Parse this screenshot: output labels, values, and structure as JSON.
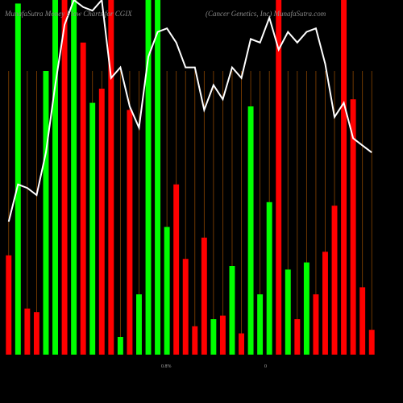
{
  "chart_data": {
    "type": "bar",
    "title": "MunafaSutra Money Flow Charts for CGIX",
    "subtitle": "(Cancer Genetics, Inc) MunafaSutra.com",
    "annotations": [
      "0.8%",
      "0"
    ],
    "ylim": [
      0,
      100
    ],
    "series": [
      {
        "name": "Money Flow",
        "colors": [
          "#ff0000",
          "#00ff00",
          "#ff0000",
          "#ff0000",
          "#00ff00",
          "#00ff00",
          "#ff0000",
          "#00ff00",
          "#ff0000",
          "#00ff00",
          "#ff0000",
          "#ff0000",
          "#00ff00",
          "#ff0000",
          "#00ff00",
          "#00ff00",
          "#00ff00",
          "#00ff00",
          "#ff0000",
          "#ff0000",
          "#ff0000",
          "#ff0000",
          "#00ff00",
          "#ff0000",
          "#00ff00",
          "#ff0000",
          "#00ff00",
          "#00ff00",
          "#00ff00",
          "#ff0000",
          "#00ff00",
          "#ff0000",
          "#00ff00",
          "#ff0000",
          "#ff0000",
          "#ff0000",
          "#ff0000",
          "#ff0000",
          "#ff0000",
          "#ff0000"
        ],
        "values": [
          28,
          99,
          13,
          12,
          80,
          100,
          100,
          100,
          88,
          71,
          75,
          100,
          5,
          69,
          17,
          100,
          100,
          36,
          48,
          27,
          8,
          33,
          10,
          11,
          25,
          6,
          70,
          17,
          43,
          100,
          24,
          10,
          26,
          17,
          29,
          42,
          100,
          72,
          19,
          7
        ]
      },
      {
        "name": "Price",
        "type": "line",
        "color": "#ffffff",
        "values": [
          37.5,
          48,
          47,
          45,
          57,
          76,
          93,
          100,
          98,
          97,
          100,
          78,
          81,
          70,
          64,
          84,
          91,
          92,
          88,
          81,
          81,
          69,
          76,
          72,
          81,
          78,
          89,
          88,
          95,
          86,
          91,
          88,
          91,
          92,
          82,
          67,
          71,
          61,
          59,
          57
        ]
      }
    ]
  }
}
